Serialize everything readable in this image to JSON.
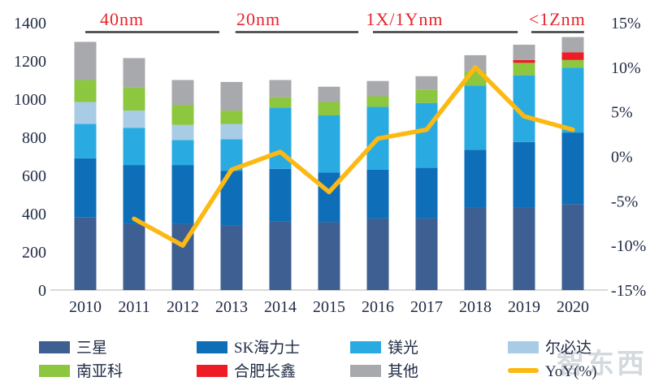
{
  "chart_data": {
    "type": "bar",
    "subtype": "stacked-bars-with-line",
    "title": "",
    "categories": [
      "2010",
      "2011",
      "2012",
      "2013",
      "2014",
      "2015",
      "2016",
      "2017",
      "2018",
      "2019",
      "2020"
    ],
    "series": [
      {
        "name": "三星",
        "color": "#3D5F92",
        "values": [
          380,
          345,
          345,
          340,
          360,
          355,
          375,
          375,
          430,
          430,
          450
        ]
      },
      {
        "name": "SK海力士",
        "color": "#0F6EB8",
        "values": [
          310,
          310,
          310,
          285,
          275,
          260,
          255,
          265,
          305,
          345,
          375
        ]
      },
      {
        "name": "镁光",
        "color": "#29ABE2",
        "values": [
          180,
          195,
          130,
          165,
          320,
          300,
          330,
          340,
          335,
          350,
          340
        ]
      },
      {
        "name": "尔必达",
        "color": "#A8CBE6",
        "values": [
          115,
          90,
          80,
          80,
          0,
          0,
          0,
          0,
          0,
          0,
          0
        ]
      },
      {
        "name": "南亚科",
        "color": "#8DC63F",
        "values": [
          115,
          120,
          105,
          70,
          55,
          70,
          55,
          70,
          75,
          65,
          40
        ]
      },
      {
        "name": "合肥长鑫",
        "color": "#EE1C25",
        "values": [
          0,
          0,
          0,
          0,
          0,
          0,
          0,
          0,
          0,
          15,
          40
        ]
      },
      {
        "name": "其他",
        "color": "#A7A9AC",
        "values": [
          200,
          155,
          130,
          150,
          90,
          80,
          80,
          70,
          85,
          80,
          80
        ]
      }
    ],
    "line_series": {
      "name": "YoY(%)",
      "color": "#FDB913",
      "x": [
        "2011",
        "2012",
        "2013",
        "2014",
        "2015",
        "2016",
        "2017",
        "2018",
        "2019",
        "2020"
      ],
      "values": [
        -7,
        -10,
        -1.5,
        0.5,
        -4,
        2,
        3,
        10,
        4.5,
        3
      ]
    },
    "left_axis": {
      "min": 0,
      "max": 1400,
      "step": 200,
      "ticks": [
        "1400",
        "1200",
        "1000",
        "800",
        "600",
        "400",
        "200",
        "0"
      ]
    },
    "right_axis": {
      "min": -15,
      "max": 15,
      "step": 5,
      "ticks": [
        "15%",
        "10%",
        "5%",
        "0%",
        "-5%",
        "-10%",
        "-15%"
      ]
    },
    "annotations": [
      {
        "label": "40nm",
        "from": 2010.0,
        "to": 2012.75,
        "label_at": 2010.75
      },
      {
        "label": "20nm",
        "from": 2013.08,
        "to": 2015.6,
        "label_at": 2013.55
      },
      {
        "label": "1X/1Ynm",
        "from": 2015.9,
        "to": 2018.87,
        "label_at": 2016.55
      },
      {
        "label": "<1Znm",
        "from": 2019.15,
        "to": 2020.23,
        "label_at": 2019.68
      }
    ],
    "annotation_color": "#E8232A",
    "bracket_color": "#3B3B3B",
    "axis_text_color": "#1F2A44",
    "baseline_color": "#D9D9D9",
    "grid": false,
    "legend_position": "bottom"
  },
  "legend": {
    "items": [
      {
        "label": "三星",
        "color": "#3D5F92",
        "type": "rect"
      },
      {
        "label": "SK海力士",
        "color": "#0F6EB8",
        "type": "rect"
      },
      {
        "label": "镁光",
        "color": "#29ABE2",
        "type": "rect"
      },
      {
        "label": "尔必达",
        "color": "#A8CBE6",
        "type": "rect"
      },
      {
        "label": "南亚科",
        "color": "#8DC63F",
        "type": "rect"
      },
      {
        "label": "合肥长鑫",
        "color": "#EE1C25",
        "type": "rect"
      },
      {
        "label": "其他",
        "color": "#A7A9AC",
        "type": "rect"
      },
      {
        "label": "YoY(%)",
        "color": "#FDB913",
        "type": "line"
      }
    ]
  },
  "watermark": {
    "text": "智东西"
  }
}
